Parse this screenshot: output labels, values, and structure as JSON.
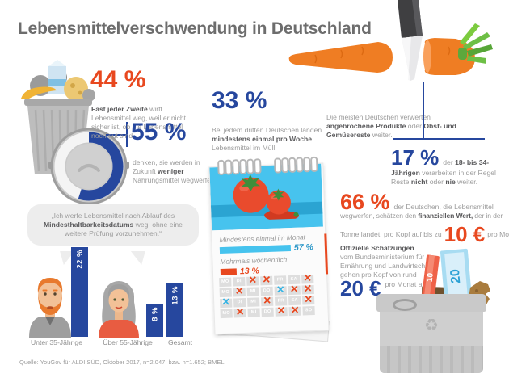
{
  "title": "Lebensmittelverschwendung in Deutschland",
  "source": "Quelle: YouGov für ALDI SÜD, Oktober 2017, n=2.047, bzw. n=1.652; BMEL.",
  "colors": {
    "accent_red": "#e8481f",
    "accent_blue": "#26479e",
    "light_blue": "#46c3ee",
    "text_gray": "#9b9b9b",
    "text_dark": "#5a5a5c",
    "title_gray": "#6d6d6d"
  },
  "left": {
    "stat44": {
      "value": "44 %",
      "bold": "Fast jeder Zweite",
      "text": " wirft Lebensmittel weg, weil er nicht sicher ist, ob die Lebensmittel noch gut sind."
    },
    "stat55": {
      "value": "55 %",
      "gauge_percent": 55,
      "t1": "denken, sie werden in Zukunft ",
      "bold": "weniger",
      "t2": " Nahrungsmittel wegwerfen."
    },
    "quote": {
      "t1": "„Ich werfe Lebensmittel nach Ablauf des ",
      "bold": "Mindesthaltbarkeitsdatums",
      "t2": " weg, ohne eine weitere Prüfung vorzunehmen.“"
    }
  },
  "middle": {
    "stat33": {
      "value": "33 %",
      "t1": "Bei jedem dritten Deutschen landen ",
      "bold": "mindestens einmal pro Woche",
      "t2": " Lebensmittel im Müll."
    },
    "calendar": {
      "days": [
        "MO",
        "DI",
        "MI",
        "DO",
        "FR",
        "SA",
        "SO"
      ],
      "marks": [
        [
          "",
          "",
          "r",
          "r",
          "",
          "",
          "r"
        ],
        [
          "",
          "r",
          "",
          "",
          "b",
          "r",
          "r"
        ],
        [
          "b",
          "",
          "",
          "r",
          "",
          "",
          "r"
        ],
        [
          "",
          "r",
          "",
          "",
          "r",
          "r",
          ""
        ]
      ]
    }
  },
  "right": {
    "reuse": {
      "t1": "Die meisten Deutschen verwerten ",
      "b1": "angebrochene Produkte",
      "t2": " oder ",
      "b2": "Obst- und Gemüsereste",
      "t3": " weiter."
    },
    "stat17": {
      "value": "17 %",
      "t1": "der ",
      "b1": "18- bis 34-Jährigen",
      "t2": " verarbeiten in der Regel Reste ",
      "b2": "nicht",
      "t3": " oder ",
      "b3": "nie",
      "t4": " weiter."
    },
    "stat66": {
      "value": "66 %",
      "line1": "der Deutschen, die Lebensmittel",
      "l2t1": "wegwerfen, schätzen den ",
      "l2b": "finanziellen Wert,",
      "l2t2": " der in der",
      "l3t1": "Tonne landet, pro Kopf auf bis zu",
      "big": "10 €",
      "l3t2": "pro Monat."
    },
    "official": {
      "heading": "Offizielle Schätzungen",
      "l1": "vom Bundesministerium für",
      "l2": "Ernährung und Landwirtschaft",
      "l3": "gehen pro Kopf von rund",
      "big": "20 €",
      "tail": "pro Monat aus."
    },
    "banknote10": "10",
    "banknote20": "20"
  },
  "chart_data": [
    {
      "type": "bar",
      "title": "Ich werfe Lebensmittel nach Ablauf des Mindesthaltbarkeitsdatums weg, ohne eine weitere Prüfung vorzunehmen.",
      "categories": [
        "Unter 35-Jährige",
        "Über 55-Jährige",
        "Gesamt"
      ],
      "values": [
        22,
        8,
        13
      ],
      "value_labels": [
        "22 %",
        "8 %",
        "13 %"
      ],
      "unit": "%",
      "ylim": [
        0,
        25
      ],
      "orientation": "vertical",
      "bar_color": "#26479e"
    },
    {
      "type": "bar",
      "title": "Wie oft landen Lebensmittel im Müll",
      "categories": [
        "Mindestens einmal im Monat",
        "Mehrmals wöchentlich"
      ],
      "values": [
        57,
        13
      ],
      "value_labels": [
        "57 %",
        "13 %"
      ],
      "unit": "%",
      "orientation": "horizontal",
      "bar_colors": [
        "#46c3ee",
        "#e8481f"
      ]
    }
  ]
}
